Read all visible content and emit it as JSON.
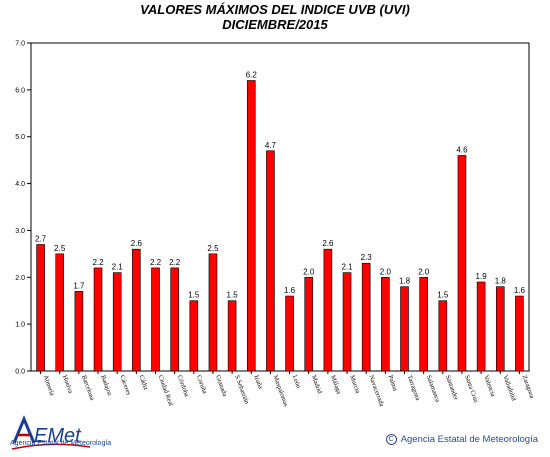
{
  "chart_data": {
    "type": "bar",
    "title": "VALORES MÁXIMOS DEL INDICE UVB (UVI)",
    "subtitle": "DICIEMBRE/2015",
    "xlabel": "",
    "ylabel": "",
    "ylim": [
      0,
      7
    ],
    "yticks": [
      "0.0",
      "1.0",
      "2.0",
      "3.0",
      "4.0",
      "5.0",
      "6.0",
      "7.0"
    ],
    "grid": false,
    "categories": [
      "Almería",
      "Huelva",
      "Barcelona",
      "Badajoz",
      "Cáceres",
      "Cádiz",
      "Ciudad Real",
      "Córdoba",
      "Coruña",
      "Granada",
      "S.Sebastián",
      "Izaña",
      "Maspalomas",
      "León",
      "Madrid",
      "Málaga",
      "Murcia",
      "Navacerrada",
      "Palma",
      "Tarragona",
      "Salamanca",
      "Santander",
      "Santa Cruz",
      "Valencia",
      "Valladolid",
      "Zaragoza"
    ],
    "values": [
      2.7,
      2.5,
      1.7,
      2.2,
      2.1,
      2.6,
      2.2,
      2.2,
      1.5,
      2.5,
      1.5,
      6.2,
      4.7,
      1.6,
      2.0,
      2.6,
      2.1,
      2.3,
      2.0,
      1.8,
      2.0,
      1.5,
      4.6,
      1.9,
      1.8,
      1.6
    ],
    "value_labels": [
      "2.7",
      "2.5",
      "1.7",
      "2.2",
      "2.1",
      "2.6",
      "2.2",
      "2.2",
      "1.5",
      "2.5",
      "1.5",
      "6.2",
      "4.7",
      "1.6",
      "2.0",
      "2.6",
      "2.1",
      "2.3",
      "2.0",
      "1.8",
      "2.0",
      "1.5",
      "4.6",
      "1.9",
      "1.8",
      "1.6"
    ],
    "bar_color": "#ff0000",
    "bar_edge_color": "#000000"
  },
  "footer": {
    "logo_text": "AEMet",
    "logo_subtitle": "Agencia Estatal de Meteorología",
    "copyright_symbol": "C",
    "copyright": "Agencia Estatal de Meteorología"
  }
}
